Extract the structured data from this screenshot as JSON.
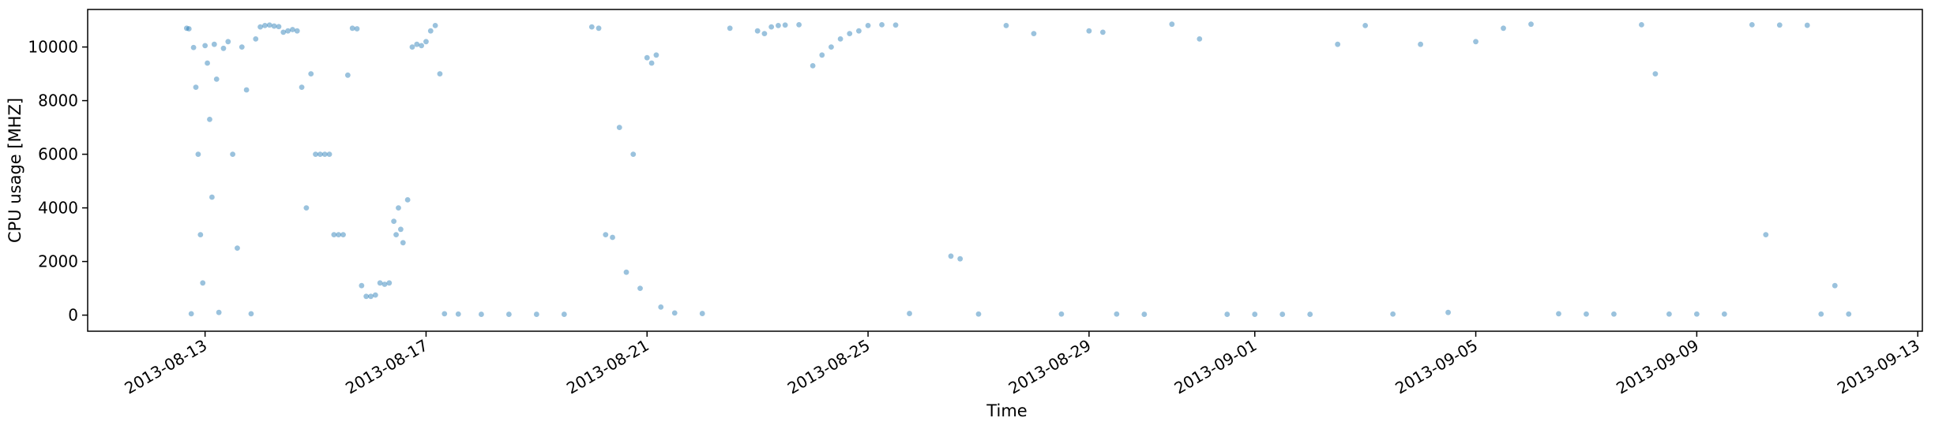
{
  "chart_data": {
    "type": "scatter",
    "title": "",
    "xlabel": "Time",
    "ylabel": "CPU usage [MHZ]",
    "x_range": [
      "2013-08-10T21:00",
      "2013-09-13T02:00"
    ],
    "ylim": [
      -600,
      11400
    ],
    "x_ticks": [
      "2013-08-13",
      "2013-08-17",
      "2013-08-21",
      "2013-08-25",
      "2013-08-29",
      "2013-09-01",
      "2013-09-05",
      "2013-09-09",
      "2013-09-13"
    ],
    "y_ticks": [
      0,
      2000,
      4000,
      6000,
      8000,
      10000
    ],
    "grid": false,
    "legend": "none",
    "marker_color": "#1f77b4",
    "marker_alpha": 0.45,
    "series": [
      {
        "points": [
          [
            "2013-08-12T16:00",
            10700
          ],
          [
            "2013-08-12T17:00",
            10680
          ],
          [
            "2013-08-12T18:00",
            50
          ],
          [
            "2013-08-12T19:00",
            9980
          ],
          [
            "2013-08-12T20:00",
            8500
          ],
          [
            "2013-08-12T21:00",
            6000
          ],
          [
            "2013-08-12T22:00",
            3000
          ],
          [
            "2013-08-12T23:00",
            1200
          ],
          [
            "2013-08-13T00:00",
            10050
          ],
          [
            "2013-08-13T01:00",
            9400
          ],
          [
            "2013-08-13T02:00",
            7300
          ],
          [
            "2013-08-13T03:00",
            4400
          ],
          [
            "2013-08-13T04:00",
            10100
          ],
          [
            "2013-08-13T05:00",
            8800
          ],
          [
            "2013-08-13T06:00",
            100
          ],
          [
            "2013-08-13T08:00",
            9950
          ],
          [
            "2013-08-13T10:00",
            10200
          ],
          [
            "2013-08-13T12:00",
            6000
          ],
          [
            "2013-08-13T14:00",
            2500
          ],
          [
            "2013-08-13T16:00",
            10000
          ],
          [
            "2013-08-13T18:00",
            8400
          ],
          [
            "2013-08-13T20:00",
            50
          ],
          [
            "2013-08-13T22:00",
            10300
          ],
          [
            "2013-08-14T00:00",
            10750
          ],
          [
            "2013-08-14T02:00",
            10800
          ],
          [
            "2013-08-14T04:00",
            10820
          ],
          [
            "2013-08-14T06:00",
            10780
          ],
          [
            "2013-08-14T08:00",
            10760
          ],
          [
            "2013-08-14T10:00",
            10550
          ],
          [
            "2013-08-14T12:00",
            10600
          ],
          [
            "2013-08-14T14:00",
            10650
          ],
          [
            "2013-08-14T16:00",
            10600
          ],
          [
            "2013-08-14T18:00",
            8500
          ],
          [
            "2013-08-14T20:00",
            4000
          ],
          [
            "2013-08-14T22:00",
            9000
          ],
          [
            "2013-08-15T00:00",
            6000
          ],
          [
            "2013-08-15T02:00",
            6000
          ],
          [
            "2013-08-15T04:00",
            6000
          ],
          [
            "2013-08-15T06:00",
            6000
          ],
          [
            "2013-08-15T08:00",
            3000
          ],
          [
            "2013-08-15T10:00",
            3000
          ],
          [
            "2013-08-15T12:00",
            3000
          ],
          [
            "2013-08-15T14:00",
            8950
          ],
          [
            "2013-08-15T16:00",
            10700
          ],
          [
            "2013-08-15T18:00",
            10680
          ],
          [
            "2013-08-15T20:00",
            1100
          ],
          [
            "2013-08-15T22:00",
            700
          ],
          [
            "2013-08-16T00:00",
            700
          ],
          [
            "2013-08-16T02:00",
            750
          ],
          [
            "2013-08-16T04:00",
            1200
          ],
          [
            "2013-08-16T06:00",
            1150
          ],
          [
            "2013-08-16T08:00",
            1200
          ],
          [
            "2013-08-16T10:00",
            3500
          ],
          [
            "2013-08-16T11:00",
            3000
          ],
          [
            "2013-08-16T12:00",
            4000
          ],
          [
            "2013-08-16T13:00",
            3200
          ],
          [
            "2013-08-16T14:00",
            2700
          ],
          [
            "2013-08-16T16:00",
            4300
          ],
          [
            "2013-08-16T18:00",
            10000
          ],
          [
            "2013-08-16T20:00",
            10100
          ],
          [
            "2013-08-16T22:00",
            10050
          ],
          [
            "2013-08-17T00:00",
            10200
          ],
          [
            "2013-08-17T02:00",
            10600
          ],
          [
            "2013-08-17T04:00",
            10800
          ],
          [
            "2013-08-17T06:00",
            9000
          ],
          [
            "2013-08-17T08:00",
            50
          ],
          [
            "2013-08-17T14:00",
            40
          ],
          [
            "2013-08-18T00:00",
            30
          ],
          [
            "2013-08-18T12:00",
            30
          ],
          [
            "2013-08-19T00:00",
            30
          ],
          [
            "2013-08-19T12:00",
            30
          ],
          [
            "2013-08-20T00:00",
            10750
          ],
          [
            "2013-08-20T03:00",
            10700
          ],
          [
            "2013-08-20T06:00",
            3000
          ],
          [
            "2013-08-20T09:00",
            2900
          ],
          [
            "2013-08-20T12:00",
            7000
          ],
          [
            "2013-08-20T15:00",
            1600
          ],
          [
            "2013-08-20T18:00",
            6000
          ],
          [
            "2013-08-20T21:00",
            1000
          ],
          [
            "2013-08-21T00:00",
            9600
          ],
          [
            "2013-08-21T02:00",
            9400
          ],
          [
            "2013-08-21T04:00",
            9700
          ],
          [
            "2013-08-21T06:00",
            300
          ],
          [
            "2013-08-21T12:00",
            80
          ],
          [
            "2013-08-22T00:00",
            60
          ],
          [
            "2013-08-22T12:00",
            10700
          ],
          [
            "2013-08-23T00:00",
            10600
          ],
          [
            "2013-08-23T03:00",
            10500
          ],
          [
            "2013-08-23T06:00",
            10750
          ],
          [
            "2013-08-23T09:00",
            10800
          ],
          [
            "2013-08-23T12:00",
            10820
          ],
          [
            "2013-08-23T18:00",
            10830
          ],
          [
            "2013-08-24T00:00",
            9300
          ],
          [
            "2013-08-24T04:00",
            9700
          ],
          [
            "2013-08-24T08:00",
            10000
          ],
          [
            "2013-08-24T12:00",
            10300
          ],
          [
            "2013-08-24T16:00",
            10500
          ],
          [
            "2013-08-24T20:00",
            10600
          ],
          [
            "2013-08-25T00:00",
            10800
          ],
          [
            "2013-08-25T06:00",
            10830
          ],
          [
            "2013-08-25T12:00",
            10820
          ],
          [
            "2013-08-25T18:00",
            60
          ],
          [
            "2013-08-26T12:00",
            2200
          ],
          [
            "2013-08-26T16:00",
            2100
          ],
          [
            "2013-08-27T00:00",
            40
          ],
          [
            "2013-08-27T12:00",
            10800
          ],
          [
            "2013-08-28T00:00",
            10500
          ],
          [
            "2013-08-28T12:00",
            40
          ],
          [
            "2013-08-29T00:00",
            10600
          ],
          [
            "2013-08-29T06:00",
            10550
          ],
          [
            "2013-08-29T12:00",
            40
          ],
          [
            "2013-08-30T00:00",
            30
          ],
          [
            "2013-08-30T12:00",
            10850
          ],
          [
            "2013-08-31T00:00",
            10300
          ],
          [
            "2013-08-31T12:00",
            30
          ],
          [
            "2013-09-01T00:00",
            30
          ],
          [
            "2013-09-01T12:00",
            30
          ],
          [
            "2013-09-02T00:00",
            30
          ],
          [
            "2013-09-02T12:00",
            10100
          ],
          [
            "2013-09-03T00:00",
            10800
          ],
          [
            "2013-09-03T12:00",
            40
          ],
          [
            "2013-09-04T00:00",
            10100
          ],
          [
            "2013-09-04T12:00",
            100
          ],
          [
            "2013-09-05T00:00",
            10200
          ],
          [
            "2013-09-05T12:00",
            10700
          ],
          [
            "2013-09-06T00:00",
            10850
          ],
          [
            "2013-09-06T12:00",
            50
          ],
          [
            "2013-09-07T00:00",
            40
          ],
          [
            "2013-09-07T12:00",
            40
          ],
          [
            "2013-09-08T00:00",
            10830
          ],
          [
            "2013-09-08T06:00",
            9000
          ],
          [
            "2013-09-08T12:00",
            40
          ],
          [
            "2013-09-09T00:00",
            40
          ],
          [
            "2013-09-09T12:00",
            40
          ],
          [
            "2013-09-10T00:00",
            10830
          ],
          [
            "2013-09-10T06:00",
            3000
          ],
          [
            "2013-09-10T12:00",
            10820
          ],
          [
            "2013-09-11T00:00",
            10810
          ],
          [
            "2013-09-11T06:00",
            40
          ],
          [
            "2013-09-11T12:00",
            1100
          ],
          [
            "2013-09-11T18:00",
            40
          ]
        ]
      }
    ]
  }
}
